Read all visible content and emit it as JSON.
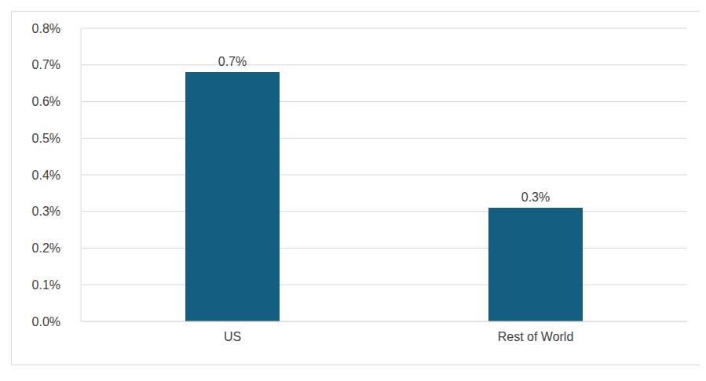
{
  "chart_data": {
    "type": "bar",
    "categories": [
      "US",
      "Rest of World"
    ],
    "values": [
      0.68,
      0.31
    ],
    "value_labels": [
      "0.7%",
      "0.3%"
    ],
    "color": "#165e7f",
    "ylim": [
      0,
      0.8
    ],
    "yticks": [
      {
        "value": 0,
        "label": "0.0%"
      },
      {
        "value": 0.1,
        "label": "0.1%"
      },
      {
        "value": 0.2,
        "label": "0.2%"
      },
      {
        "value": 0.3,
        "label": "0.3%"
      },
      {
        "value": 0.4,
        "label": "0.4%"
      },
      {
        "value": 0.5,
        "label": "0.5%"
      },
      {
        "value": 0.6,
        "label": "0.6%"
      },
      {
        "value": 0.7,
        "label": "0.7%"
      },
      {
        "value": 0.8,
        "label": "0.8%"
      }
    ],
    "grid": true,
    "data_labels": true
  }
}
